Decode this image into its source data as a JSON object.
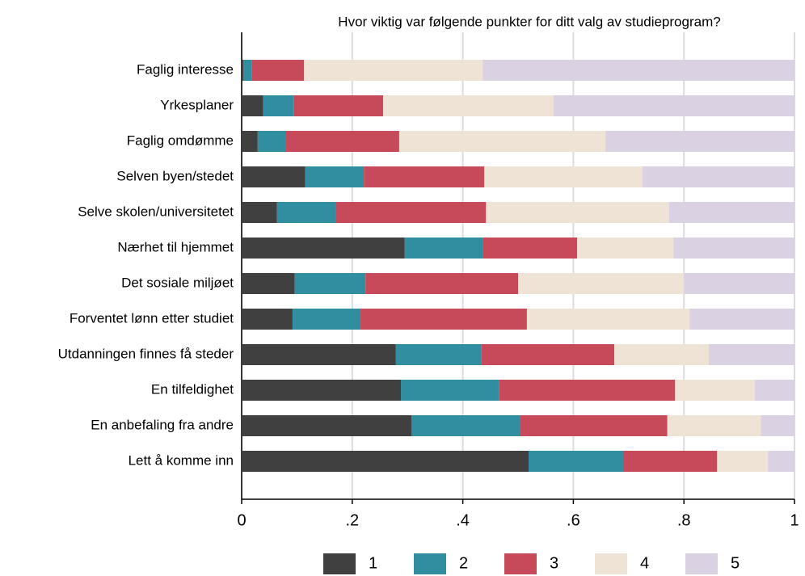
{
  "chart_data": {
    "type": "stacked-barh",
    "title": "Hvor viktig var følgende punkter for ditt valg av studieprogram?",
    "categories": [
      "Faglig interesse",
      "Yrkesplaner",
      "Faglig omdømme",
      "Selven byen/stedet",
      "Selve skolen/universitetet",
      "Nærhet til hjemmet",
      "Det sosiale miljøet",
      "Forventet lønn etter studiet",
      "Utdanningen finnes få steder",
      "En tilfeldighet",
      "En anbefaling fra andre",
      "Lett å komme inn"
    ],
    "series": [
      {
        "name": "1",
        "color": "#404040",
        "values": [
          0.003,
          0.039,
          0.029,
          0.115,
          0.064,
          0.295,
          0.096,
          0.092,
          0.279,
          0.288,
          0.307,
          0.519
        ]
      },
      {
        "name": "2",
        "color": "#318ea0",
        "values": [
          0.015,
          0.055,
          0.05,
          0.106,
          0.107,
          0.142,
          0.128,
          0.123,
          0.155,
          0.178,
          0.196,
          0.171
        ]
      },
      {
        "name": "3",
        "color": "#c74a5a",
        "values": [
          0.095,
          0.162,
          0.206,
          0.218,
          0.271,
          0.17,
          0.276,
          0.301,
          0.24,
          0.318,
          0.267,
          0.17
        ]
      },
      {
        "name": "4",
        "color": "#efe3d5",
        "values": [
          0.323,
          0.308,
          0.373,
          0.286,
          0.331,
          0.174,
          0.3,
          0.294,
          0.171,
          0.144,
          0.169,
          0.092
        ]
      },
      {
        "name": "5",
        "color": "#dad2e2",
        "values": [
          0.564,
          0.436,
          0.342,
          0.275,
          0.227,
          0.219,
          0.2,
          0.19,
          0.155,
          0.072,
          0.061,
          0.048
        ]
      }
    ],
    "xlim": [
      0,
      1
    ],
    "xticks": [
      0,
      {
        "value": 0.2,
        "label": ".2"
      },
      {
        "value": 0.4,
        "label": ".4"
      },
      {
        "value": 0.6,
        "label": ".6"
      },
      {
        "value": 0.8,
        "label": ".8"
      },
      1
    ],
    "grid": true
  }
}
